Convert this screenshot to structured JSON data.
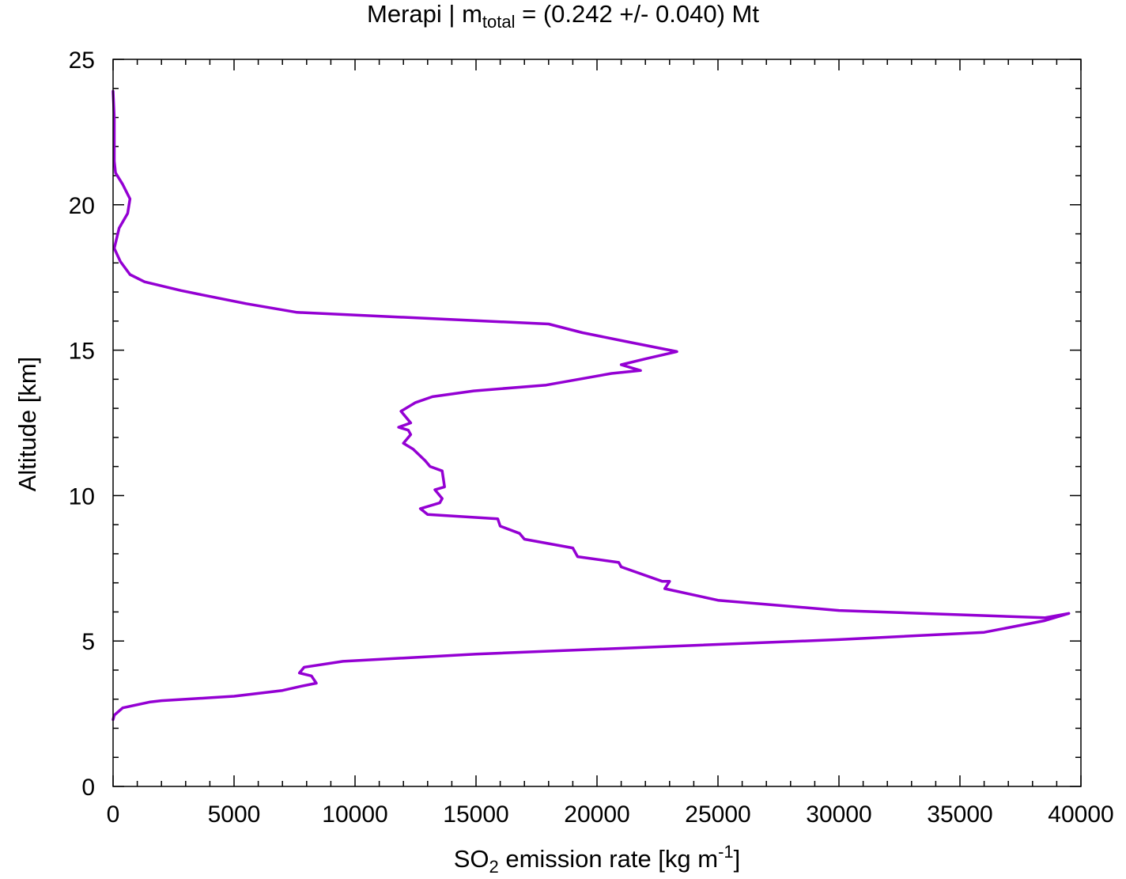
{
  "title": {
    "prefix": "Merapi | m",
    "subscript": "total",
    "suffix": " = (0.242 +/- 0.040) Mt"
  },
  "xlabel": {
    "pre": "SO",
    "sub": "2",
    "mid": " emission rate [kg m",
    "sup": "-1",
    "post": "]"
  },
  "ylabel": "Altitude [km]",
  "colors": {
    "line": "#9400d3",
    "axis": "#000000"
  },
  "chart_data": {
    "type": "line",
    "xlim": [
      0,
      40000
    ],
    "ylim": [
      0,
      25
    ],
    "xticks": [
      0,
      5000,
      10000,
      15000,
      20000,
      25000,
      30000,
      35000,
      40000
    ],
    "xtick_labels": [
      "0",
      "5000",
      "10000",
      "15000",
      "20000",
      "25000",
      "30000",
      "35000",
      "40000"
    ],
    "yticks": [
      0,
      5,
      10,
      15,
      20,
      25
    ],
    "ytick_labels": [
      "0",
      "5",
      "10",
      "15",
      "20",
      "25"
    ],
    "grid": false,
    "series": [
      {
        "x": [
          0,
          50,
          400,
          1500,
          2000,
          4000,
          5000,
          7000,
          7800,
          8400,
          8200,
          7700,
          7900,
          9500,
          15000,
          30000,
          36000,
          38500,
          39500,
          38500,
          30000,
          25000,
          22800,
          23000,
          22700,
          21000,
          20900,
          19200,
          19000,
          17000,
          16800,
          16000,
          15900,
          13000,
          12700,
          13500,
          13600,
          13300,
          13700,
          13600,
          13100,
          12900,
          12400,
          12000,
          12300,
          12200,
          11800,
          12300,
          11900,
          12500,
          13200,
          14900,
          17900,
          20600,
          21800,
          21000,
          22000,
          23300,
          21200,
          19400,
          18000,
          7600,
          5500,
          3700,
          2800,
          1300,
          700,
          300,
          50,
          250,
          600,
          700,
          400,
          100,
          50,
          50,
          0
        ],
        "y": [
          2.3,
          2.45,
          2.7,
          2.9,
          2.95,
          3.05,
          3.1,
          3.3,
          3.45,
          3.55,
          3.8,
          3.9,
          4.1,
          4.3,
          4.55,
          5.05,
          5.3,
          5.7,
          5.95,
          5.8,
          6.05,
          6.4,
          6.8,
          7.05,
          7.05,
          7.55,
          7.7,
          7.9,
          8.2,
          8.5,
          8.7,
          8.95,
          9.2,
          9.35,
          9.55,
          9.75,
          9.9,
          10.2,
          10.3,
          10.85,
          11,
          11.2,
          11.6,
          11.8,
          12.1,
          12.25,
          12.35,
          12.5,
          12.9,
          13.2,
          13.4,
          13.6,
          13.8,
          14.2,
          14.3,
          14.5,
          14.7,
          14.95,
          15.3,
          15.6,
          15.9,
          16.3,
          16.6,
          16.9,
          17.05,
          17.35,
          17.6,
          18.05,
          18.5,
          19.2,
          19.7,
          20.2,
          20.7,
          21.1,
          21.5,
          23,
          23.9
        ]
      }
    ]
  }
}
